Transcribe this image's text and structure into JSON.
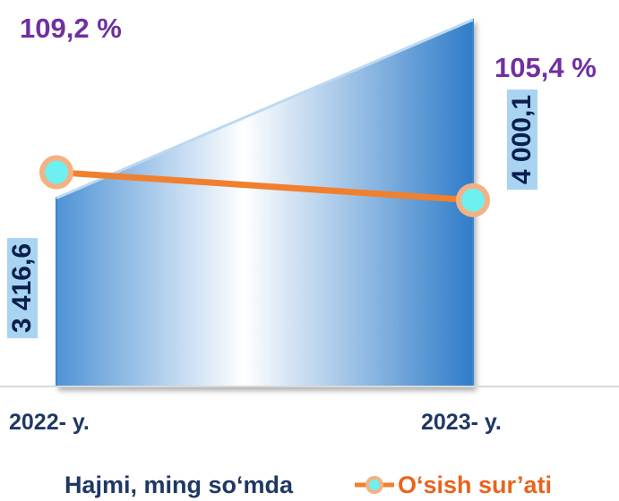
{
  "chart_data": {
    "type": "area",
    "categories": [
      "2022- y.",
      "2023- y."
    ],
    "series": [
      {
        "name": "Hajmi, ming so‘mda",
        "type": "area",
        "values": [
          3416.6,
          4000.1
        ],
        "data_labels": [
          "3 416,6",
          "4 000,1"
        ],
        "color": "#5b9bd5"
      },
      {
        "name": "O‘sish sur’ati",
        "type": "line",
        "values": [
          109.2,
          105.4
        ],
        "data_labels": [
          "109,2 %",
          "105,4 %"
        ],
        "color": "#f0802e",
        "marker_fill": "#6ef0f0",
        "marker_border": "#f4b183"
      }
    ],
    "y_area_range": [
      2800,
      4000.1
    ],
    "y_line_range": [
      80,
      130
    ],
    "grid": false,
    "legend_position": "bottom",
    "colors": {
      "area_top": "#0b64b9",
      "area_light": "#ffffff",
      "area_edge": "#2a7bc4",
      "pct_label": "#7030a0",
      "value_label_bg": "#a8d4f2",
      "value_label_text": "#0a1f4d",
      "axis_label": "#1f3864",
      "legend_area_text": "#1f3864",
      "legend_line_text": "#e8641e"
    }
  }
}
